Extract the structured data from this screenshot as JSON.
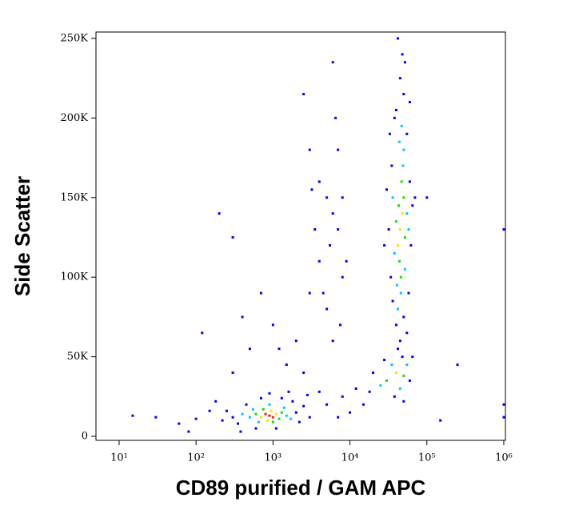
{
  "chart_data": {
    "type": "scatter",
    "x_label": "CD89 purified / GAM APC",
    "y_label": "Side Scatter",
    "x_scale": "log",
    "xlim": [
      5,
      1050000
    ],
    "ylim": [
      -2500,
      254000
    ],
    "xticks": [
      {
        "value": 10,
        "label": "10¹"
      },
      {
        "value": 100,
        "label": "10²"
      },
      {
        "value": 1000,
        "label": "10³"
      },
      {
        "value": 10000,
        "label": "10⁴"
      },
      {
        "value": 100000,
        "label": "10⁵"
      },
      {
        "value": 1000000,
        "label": "10⁶"
      }
    ],
    "yticks": [
      0,
      {
        "value": 50000,
        "label": "50K"
      },
      {
        "value": 100000,
        "label": "100K"
      },
      {
        "value": 150000,
        "label": "150K"
      },
      {
        "value": 200000,
        "label": "200K"
      },
      {
        "value": 250000,
        "label": "250K"
      }
    ],
    "grid": false,
    "series": [
      {
        "color": "#0000ff",
        "x": [
          300,
          350,
          450,
          2000,
          2200,
          1800,
          600,
          1100,
          1300,
          700,
          250,
          2500,
          3000,
          380,
          1600,
          900,
          2800,
          220,
          15,
          30,
          60,
          100,
          150,
          80,
          180,
          5000,
          7000,
          10000,
          12000,
          4000,
          8000,
          15000,
          40000,
          50000,
          45000,
          48000,
          42000,
          52000,
          38000,
          55000,
          35000,
          60000,
          62000,
          32000,
          34000,
          58000,
          40000,
          50000,
          45000,
          36000,
          55000,
          42000,
          48000,
          30000,
          65000,
          70000,
          28000,
          60000,
          33000,
          5000,
          6000,
          4000,
          7000,
          5500,
          8000,
          4500,
          6500,
          3500,
          9000,
          5000,
          7500,
          3000,
          6000,
          4000,
          8000,
          7000,
          3200,
          6000,
          2500,
          200,
          300,
          700,
          1000,
          2000,
          500,
          1500,
          300,
          120,
          3000,
          250000,
          1000000,
          1000000,
          1000000,
          150000,
          100000,
          400,
          2500,
          1200,
          20000,
          60000,
          28000,
          65000,
          18000,
          38000,
          50000
        ],
        "values": [
          12000,
          8000,
          20000,
          15000,
          9000,
          22000,
          5000,
          5000,
          24000,
          24000,
          16000,
          19000,
          12000,
          3000,
          28000,
          27000,
          26000,
          10000,
          13000,
          12000,
          8000,
          11000,
          16000,
          3000,
          22000,
          20000,
          12000,
          15000,
          30000,
          28000,
          25000,
          20000,
          205000,
          215000,
          225000,
          240000,
          250000,
          235000,
          200000,
          190000,
          170000,
          160000,
          120000,
          130000,
          100000,
          90000,
          70000,
          75000,
          60000,
          85000,
          65000,
          55000,
          50000,
          155000,
          145000,
          150000,
          120000,
          210000,
          190000,
          150000,
          140000,
          160000,
          180000,
          120000,
          100000,
          90000,
          200000,
          130000,
          110000,
          80000,
          70000,
          180000,
          60000,
          110000,
          150000,
          130000,
          155000,
          235000,
          215000,
          140000,
          125000,
          90000,
          70000,
          60000,
          55000,
          45000,
          40000,
          65000,
          90000,
          45000,
          130000,
          20000,
          12000,
          10000,
          150000,
          75000,
          40000,
          55000,
          40000,
          35000,
          48000,
          50000,
          28000,
          25000,
          22000
        ]
      },
      {
        "color": "#00c8ff",
        "x": [
          25000,
          35000,
          55000,
          45000,
          49000,
          41000,
          55000,
          38000,
          50000,
          44000,
          46000,
          52000,
          36000,
          58000,
          47000,
          42000,
          500,
          1500,
          650,
          1400,
          900,
          400,
          1700,
          550
        ],
        "values": [
          32000,
          45000,
          45000,
          30000,
          170000,
          95000,
          140000,
          115000,
          180000,
          185000,
          90000,
          105000,
          150000,
          130000,
          195000,
          80000,
          12000,
          13000,
          9000,
          18000,
          20000,
          14000,
          11000,
          17000
        ]
      },
      {
        "color": "#10e010",
        "x": [
          30000,
          50000,
          50000,
          44000,
          47000,
          52000,
          40000,
          46000,
          43000,
          1200,
          600,
          1300,
          750,
          1000
        ],
        "values": [
          35000,
          38000,
          150000,
          110000,
          160000,
          125000,
          135000,
          100000,
          145000,
          11000,
          14000,
          15000,
          17000,
          9000
        ]
      },
      {
        "color": "#ffe000",
        "x": [
          40000,
          45000,
          48000,
          42000,
          1100,
          700,
          950,
          850
        ],
        "values": [
          40000,
          130000,
          140000,
          120000,
          14000,
          12000,
          16000,
          10000
        ]
      },
      {
        "color": "#ff2000",
        "x": [
          900,
          1000,
          800
        ],
        "values": [
          13000,
          12000,
          14000
        ]
      }
    ]
  }
}
